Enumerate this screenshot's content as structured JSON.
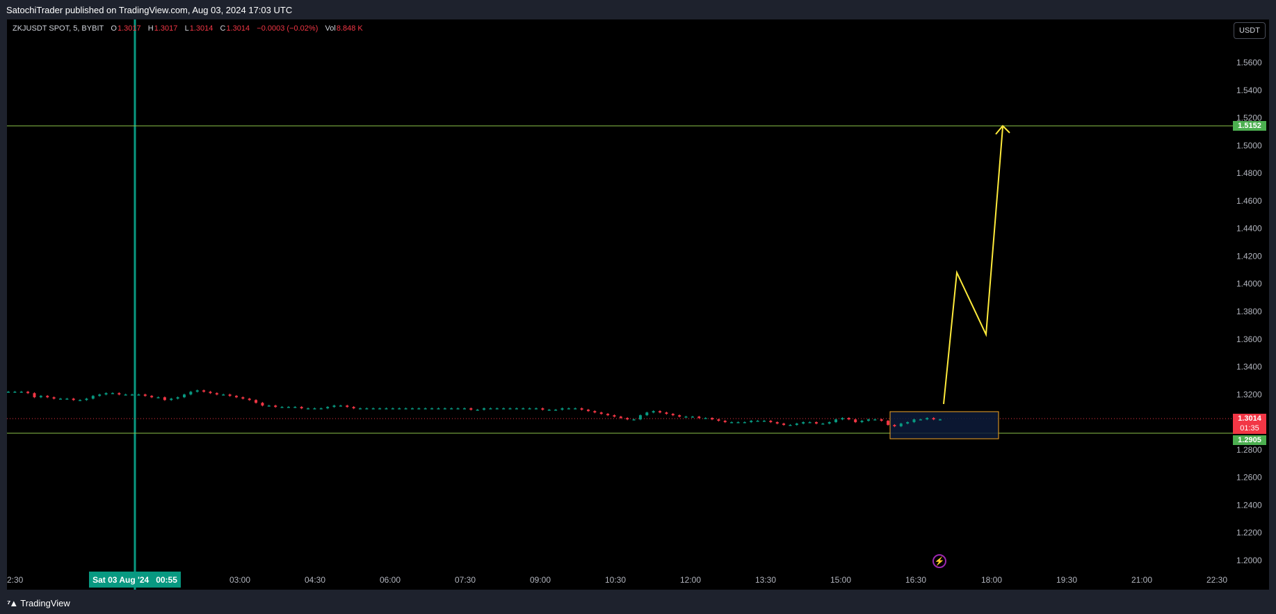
{
  "header": {
    "published_by": "SatochiTrader published on TradingView.com, Aug 03, 2024 17:03 UTC"
  },
  "legend": {
    "symbol": "ZKJUSDT SPOT, 5, BYBIT",
    "open_label": "O",
    "open": "1.3017",
    "high_label": "H",
    "high": "1.3017",
    "low_label": "L",
    "low": "1.3014",
    "close_label": "C",
    "close": "1.3014",
    "change": "−0.0003 (−0.02%)",
    "vol_label": "Vol",
    "vol": "8.848 K"
  },
  "currency_button": "USDT",
  "price_axis": [
    "1.5600",
    "1.5400",
    "1.5200",
    "1.5000",
    "1.4800",
    "1.4600",
    "1.4400",
    "1.4200",
    "1.4000",
    "1.3800",
    "1.3600",
    "1.3400",
    "1.3200",
    "1.2800",
    "1.2600",
    "1.2400",
    "1.2200",
    "1.2000"
  ],
  "time_axis": [
    "2:30",
    "03:00",
    "04:30",
    "06:00",
    "07:30",
    "09:00",
    "10:30",
    "12:00",
    "13:30",
    "15:00",
    "16:30",
    "18:00",
    "19:30",
    "21:00",
    "22:30"
  ],
  "crosshair_date": {
    "date": "Sat 03 Aug '24",
    "time": "00:55"
  },
  "price_tags": {
    "target": "1.5152",
    "current": "1.3014",
    "countdown": "01:35",
    "support": "1.2905"
  },
  "footer": {
    "brand": "TradingView"
  },
  "colors": {
    "up": "#089981",
    "down": "#f23645",
    "horizontal_line": "#8bc34a",
    "projection": "#ffeb3b",
    "box_border": "#f5a623",
    "box_fill": "#0d1b3a"
  },
  "icons": [
    "lightning-icon",
    "tradingview-logo-icon"
  ],
  "chart_data": {
    "type": "candlestick",
    "symbol": "ZKJUSDT",
    "interval": "5",
    "xlabel": "",
    "ylabel": "",
    "ylim": [
      1.19,
      1.575
    ],
    "horizontal_lines": [
      1.5152,
      1.2905
    ],
    "current_price": 1.3014,
    "projection_path": [
      {
        "time": "17:00",
        "price": 1.311
      },
      {
        "time": "17:20",
        "price": 1.408
      },
      {
        "time": "17:45",
        "price": 1.363
      },
      {
        "time": "18:10",
        "price": 1.516
      }
    ],
    "close_series": [
      1.322,
      1.322,
      1.322,
      1.321,
      1.318,
      1.319,
      1.318,
      1.317,
      1.317,
      1.317,
      1.316,
      1.316,
      1.317,
      1.319,
      1.32,
      1.321,
      1.321,
      1.32,
      1.32,
      1.32,
      1.32,
      1.319,
      1.318,
      1.318,
      1.316,
      1.317,
      1.318,
      1.32,
      1.322,
      1.323,
      1.322,
      1.321,
      1.32,
      1.32,
      1.319,
      1.318,
      1.317,
      1.316,
      1.314,
      1.312,
      1.312,
      1.311,
      1.311,
      1.311,
      1.311,
      1.31,
      1.31,
      1.31,
      1.31,
      1.311,
      1.312,
      1.312,
      1.311,
      1.31,
      1.31,
      1.31,
      1.31,
      1.31,
      1.31,
      1.31,
      1.31,
      1.31,
      1.31,
      1.31,
      1.31,
      1.31,
      1.31,
      1.31,
      1.31,
      1.31,
      1.31,
      1.309,
      1.309,
      1.31,
      1.31,
      1.31,
      1.31,
      1.31,
      1.31,
      1.31,
      1.31,
      1.31,
      1.309,
      1.309,
      1.309,
      1.31,
      1.31,
      1.31,
      1.309,
      1.308,
      1.307,
      1.306,
      1.305,
      1.304,
      1.303,
      1.302,
      1.302,
      1.305,
      1.307,
      1.308,
      1.307,
      1.306,
      1.305,
      1.304,
      1.304,
      1.304,
      1.303,
      1.303,
      1.302,
      1.301,
      1.3,
      1.3,
      1.3,
      1.3,
      1.301,
      1.301,
      1.301,
      1.3,
      1.299,
      1.298,
      1.298,
      1.299,
      1.3,
      1.3,
      1.299,
      1.299,
      1.3,
      1.302,
      1.303,
      1.302,
      1.3,
      1.301,
      1.302,
      1.302,
      1.301,
      1.298,
      1.297,
      1.299,
      1.3,
      1.302,
      1.302,
      1.303,
      1.302,
      1.302
    ]
  }
}
